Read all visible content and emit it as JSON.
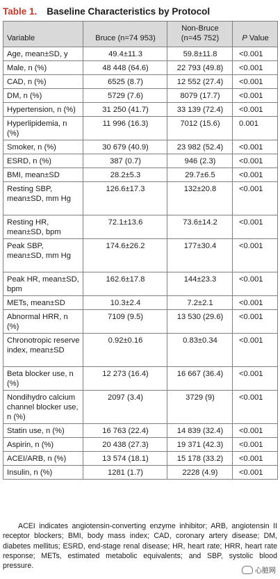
{
  "title": {
    "label": "Table 1.",
    "text": "Baseline Characteristics by Protocol"
  },
  "table": {
    "headers": {
      "variable": "Variable",
      "bruce": "Bruce (n=74 953)",
      "nonbruce": "Non-Bruce (n=45 752)",
      "pvalue_italic": "P",
      "pvalue_rest": " Value"
    },
    "rows": [
      {
        "variable": "Age, mean±SD, y",
        "bruce": "49.4±11.3",
        "nonbruce": "59.8±11.8",
        "p": "<0.001"
      },
      {
        "variable": "Male, n (%)",
        "bruce": "48 448 (64.6)",
        "nonbruce": "22 793 (49.8)",
        "p": "<0.001"
      },
      {
        "variable": "CAD, n (%)",
        "bruce": "6525 (8.7)",
        "nonbruce": "12 552 (27.4)",
        "p": "<0.001"
      },
      {
        "variable": "DM, n (%)",
        "bruce": "5729 (7.6)",
        "nonbruce": "8079 (17.7)",
        "p": "<0.001"
      },
      {
        "variable": "Hypertension, n (%)",
        "bruce": "31 250 (41.7)",
        "nonbruce": "33 139 (72.4)",
        "p": "<0.001"
      },
      {
        "variable": "Hyperlipidemia, n (%)",
        "bruce": "11 996 (16.3)",
        "nonbruce": "7012 (15.6)",
        "p": "0.001"
      },
      {
        "variable": "Smoker, n (%)",
        "bruce": "30 679 (40.9)",
        "nonbruce": "23 982 (52.4)",
        "p": "<0.001"
      },
      {
        "variable": "ESRD, n (%)",
        "bruce": "387 (0.7)",
        "nonbruce": "946 (2.3)",
        "p": "<0.001"
      },
      {
        "variable": "BMI, mean±SD",
        "bruce": "28.2±5.3",
        "nonbruce": "29.7±6.5",
        "p": "<0.001"
      },
      {
        "variable": "Resting SBP, mean±SD, mm Hg",
        "bruce": "126.6±17.3",
        "nonbruce": "132±20.8",
        "p": "<0.001"
      },
      {
        "variable": "Resting HR, mean±SD, bpm",
        "bruce": "72.1±13.6",
        "nonbruce": "73.6±14.2",
        "p": "<0.001"
      },
      {
        "variable": "Peak SBP, mean±SD, mm Hg",
        "bruce": "174.6±26.2",
        "nonbruce": "177±30.4",
        "p": "<0.001"
      },
      {
        "variable": "Peak HR, mean±SD, bpm",
        "bruce": "162.6±17.8",
        "nonbruce": "144±23.3",
        "p": "<0.001"
      },
      {
        "variable": "METs, mean±SD",
        "bruce": "10.3±2.4",
        "nonbruce": "7.2±2.1",
        "p": "<0.001"
      },
      {
        "variable": "Abnormal HRR, n (%)",
        "bruce": "7109 (9.5)",
        "nonbruce": "13 530 (29.6)",
        "p": "<0.001"
      },
      {
        "variable": "Chronotropic reserve index, mean±SD",
        "bruce": "0.92±0.16",
        "nonbruce": "0.83±0.34",
        "p": "<0.001"
      },
      {
        "variable": "Beta blocker use, n (%)",
        "bruce": "12 273 (16.4)",
        "nonbruce": "16 667 (36.4)",
        "p": "<0.001"
      },
      {
        "variable": "Nondihydro calcium channel blocker use, n (%)",
        "bruce": "2097 (3.4)",
        "nonbruce": "3729 (9)",
        "p": "<0.001"
      },
      {
        "variable": "Statin use, n (%)",
        "bruce": "16 763 (22.4)",
        "nonbruce": "14 839 (32.4)",
        "p": "<0.001"
      },
      {
        "variable": "Aspirin, n (%)",
        "bruce": "20 438 (27.3)",
        "nonbruce": "19 371 (42.3)",
        "p": "<0.001"
      },
      {
        "variable": "ACEI/ARB, n (%)",
        "bruce": "13 574 (18.1)",
        "nonbruce": "15 178 (33.2)",
        "p": "<0.001"
      },
      {
        "variable": "Insulin, n (%)",
        "bruce": "1281 (1.7)",
        "nonbruce": "2228 (4.9)",
        "p": "<0.001"
      }
    ]
  },
  "footnote": "ACEI indicates angiotensin-converting enzyme inhibitor; ARB, angiotensin II receptor blockers; BMI, body mass index; CAD, coronary artery disease; DM, diabetes mellitus; ESRD, end-stage renal disease; HR, heart rate; HRR, heart rate response; METs, estimated metabolic equivalents; and SBP, systolic blood pressure.",
  "watermark": {
    "text": "心脏网"
  },
  "colors": {
    "title_label": "#c0392b",
    "header_bg": "#d9d9d9",
    "border": "#7f7f7f"
  }
}
